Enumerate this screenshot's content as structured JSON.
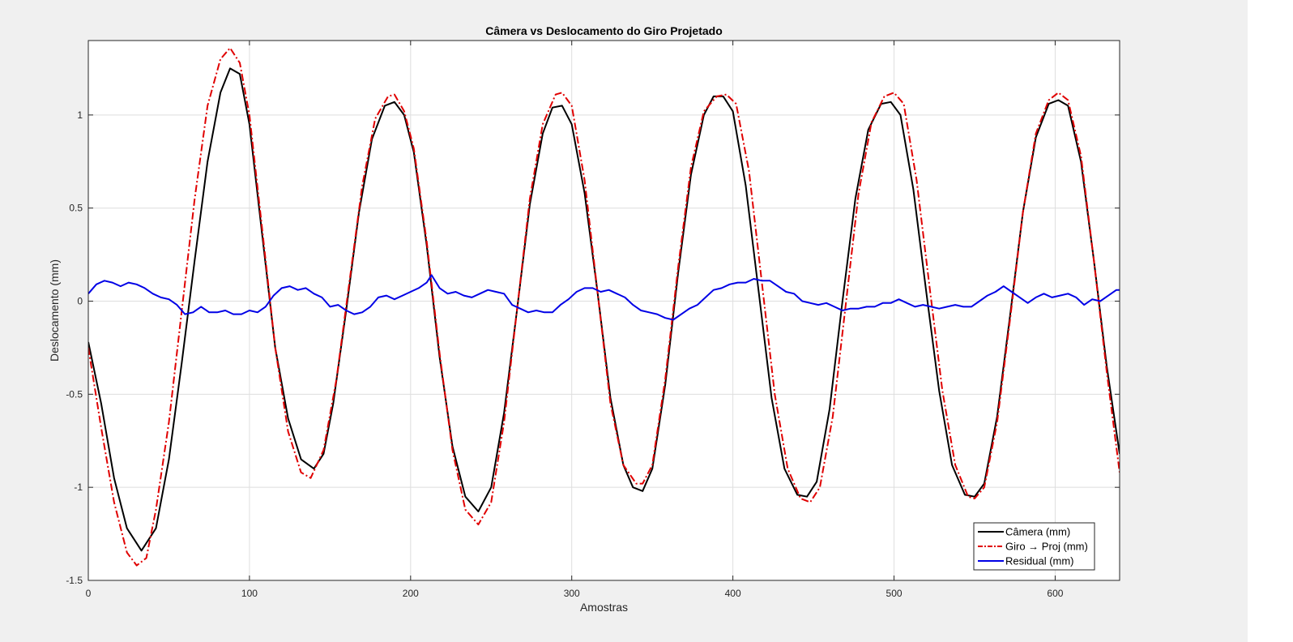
{
  "chart_data": {
    "type": "line",
    "title": "Câmera vs Deslocamento do Giro Projetado",
    "xlabel": "Amostras",
    "ylabel": "Deslocamento (mm)",
    "xlim": [
      0,
      640
    ],
    "ylim": [
      -1.5,
      1.4
    ],
    "xticks": [
      0,
      100,
      200,
      300,
      400,
      500,
      600
    ],
    "xtick_labels": [
      "0",
      "100",
      "200",
      "300",
      "400",
      "500",
      "600"
    ],
    "yticks": [
      -1.5,
      -1,
      -0.5,
      0,
      0.5,
      1
    ],
    "ytick_labels": [
      "-1.5",
      "-1",
      "-0.5",
      "0",
      "0.5",
      "1"
    ],
    "grid": true,
    "legend_position": "bottom-right",
    "series": [
      {
        "name": "Câmera (mm)",
        "color": "#000000",
        "line_style": "solid",
        "x": [
          0,
          8,
          16,
          24,
          33,
          42,
          50,
          58,
          66,
          74,
          82,
          88,
          94,
          100,
          108,
          116,
          124,
          132,
          140,
          146,
          152,
          160,
          168,
          176,
          184,
          190,
          196,
          202,
          210,
          218,
          226,
          234,
          242,
          250,
          258,
          266,
          274,
          282,
          288,
          294,
          300,
          308,
          316,
          324,
          332,
          338,
          344,
          350,
          358,
          366,
          374,
          382,
          388,
          394,
          400,
          408,
          416,
          424,
          432,
          440,
          446,
          452,
          460,
          468,
          476,
          484,
          492,
          498,
          504,
          512,
          520,
          528,
          536,
          544,
          550,
          556,
          564,
          572,
          580,
          588,
          596,
          602,
          608,
          616,
          624,
          632,
          640
        ],
        "y": [
          -0.22,
          -0.55,
          -0.95,
          -1.22,
          -1.34,
          -1.22,
          -0.85,
          -0.33,
          0.22,
          0.75,
          1.12,
          1.25,
          1.22,
          0.95,
          0.35,
          -0.25,
          -0.63,
          -0.85,
          -0.9,
          -0.82,
          -0.55,
          -0.05,
          0.48,
          0.87,
          1.05,
          1.07,
          1.0,
          0.8,
          0.3,
          -0.3,
          -0.78,
          -1.05,
          -1.13,
          -1.0,
          -0.6,
          -0.05,
          0.52,
          0.9,
          1.04,
          1.05,
          0.95,
          0.58,
          0.05,
          -0.52,
          -0.88,
          -1.0,
          -1.02,
          -0.9,
          -0.45,
          0.15,
          0.68,
          1.0,
          1.1,
          1.1,
          1.02,
          0.62,
          0.05,
          -0.52,
          -0.9,
          -1.04,
          -1.05,
          -0.97,
          -0.58,
          0.0,
          0.55,
          0.92,
          1.06,
          1.07,
          1.0,
          0.6,
          0.05,
          -0.48,
          -0.88,
          -1.04,
          -1.05,
          -0.98,
          -0.62,
          -0.08,
          0.48,
          0.88,
          1.06,
          1.08,
          1.05,
          0.75,
          0.22,
          -0.35,
          -0.82
        ]
      },
      {
        "name": "Giro → Proj (mm)",
        "color": "#e00000",
        "line_style": "dash-dot",
        "x": [
          0,
          8,
          16,
          24,
          30,
          36,
          42,
          50,
          58,
          66,
          74,
          82,
          88,
          94,
          100,
          108,
          116,
          124,
          132,
          138,
          146,
          154,
          162,
          170,
          178,
          186,
          190,
          196,
          202,
          210,
          218,
          226,
          234,
          242,
          250,
          258,
          266,
          274,
          282,
          290,
          294,
          300,
          308,
          316,
          324,
          332,
          340,
          344,
          350,
          358,
          366,
          374,
          382,
          390,
          396,
          402,
          410,
          418,
          426,
          434,
          442,
          448,
          454,
          462,
          470,
          478,
          486,
          494,
          500,
          506,
          514,
          522,
          530,
          538,
          546,
          550,
          556,
          564,
          572,
          580,
          588,
          596,
          602,
          608,
          616,
          624,
          632,
          640
        ],
        "y": [
          -0.25,
          -0.68,
          -1.08,
          -1.35,
          -1.42,
          -1.38,
          -1.12,
          -0.65,
          -0.05,
          0.55,
          1.05,
          1.3,
          1.36,
          1.28,
          1.0,
          0.38,
          -0.25,
          -0.7,
          -0.92,
          -0.95,
          -0.8,
          -0.42,
          0.1,
          0.62,
          0.98,
          1.1,
          1.11,
          1.02,
          0.82,
          0.32,
          -0.28,
          -0.8,
          -1.12,
          -1.2,
          -1.08,
          -0.65,
          -0.05,
          0.55,
          0.95,
          1.11,
          1.12,
          1.05,
          0.65,
          0.05,
          -0.55,
          -0.88,
          -0.98,
          -0.98,
          -0.88,
          -0.42,
          0.18,
          0.72,
          1.02,
          1.1,
          1.11,
          1.06,
          0.7,
          0.1,
          -0.5,
          -0.9,
          -1.06,
          -1.08,
          -1.0,
          -0.62,
          -0.02,
          0.58,
          0.96,
          1.1,
          1.12,
          1.06,
          0.65,
          0.08,
          -0.48,
          -0.88,
          -1.05,
          -1.06,
          -1.0,
          -0.65,
          -0.1,
          0.48,
          0.9,
          1.08,
          1.12,
          1.08,
          0.78,
          0.22,
          -0.38,
          -0.92
        ]
      },
      {
        "name": "Residual (mm)",
        "color": "#0000e6",
        "line_style": "solid",
        "x": [
          0,
          5,
          10,
          15,
          20,
          25,
          30,
          35,
          40,
          45,
          50,
          55,
          60,
          65,
          70,
          75,
          80,
          85,
          90,
          95,
          100,
          105,
          110,
          115,
          120,
          125,
          130,
          135,
          140,
          145,
          150,
          155,
          160,
          165,
          170,
          175,
          180,
          185,
          190,
          195,
          200,
          205,
          210,
          213,
          218,
          223,
          228,
          233,
          238,
          243,
          248,
          253,
          258,
          263,
          268,
          273,
          278,
          283,
          288,
          293,
          298,
          303,
          308,
          313,
          318,
          323,
          328,
          333,
          338,
          343,
          348,
          353,
          358,
          363,
          368,
          373,
          378,
          383,
          388,
          393,
          398,
          403,
          408,
          413,
          418,
          423,
          428,
          433,
          438,
          443,
          448,
          453,
          458,
          463,
          468,
          473,
          478,
          483,
          488,
          493,
          498,
          503,
          508,
          513,
          518,
          523,
          528,
          533,
          538,
          543,
          548,
          553,
          558,
          563,
          568,
          573,
          578,
          583,
          588,
          593,
          598,
          603,
          608,
          613,
          618,
          623,
          628,
          633,
          638,
          640
        ],
        "y": [
          0.04,
          0.09,
          0.11,
          0.1,
          0.08,
          0.1,
          0.09,
          0.07,
          0.04,
          0.02,
          0.01,
          -0.02,
          -0.07,
          -0.06,
          -0.03,
          -0.06,
          -0.06,
          -0.05,
          -0.07,
          -0.07,
          -0.05,
          -0.06,
          -0.03,
          0.03,
          0.07,
          0.08,
          0.06,
          0.07,
          0.04,
          0.02,
          -0.03,
          -0.02,
          -0.05,
          -0.07,
          -0.06,
          -0.03,
          0.02,
          0.03,
          0.01,
          0.03,
          0.05,
          0.07,
          0.1,
          0.14,
          0.07,
          0.04,
          0.05,
          0.03,
          0.02,
          0.04,
          0.06,
          0.05,
          0.04,
          -0.02,
          -0.04,
          -0.06,
          -0.05,
          -0.06,
          -0.06,
          -0.02,
          0.01,
          0.05,
          0.07,
          0.07,
          0.05,
          0.06,
          0.04,
          0.02,
          -0.02,
          -0.05,
          -0.06,
          -0.07,
          -0.09,
          -0.1,
          -0.07,
          -0.04,
          -0.02,
          0.02,
          0.06,
          0.07,
          0.09,
          0.1,
          0.1,
          0.12,
          0.11,
          0.11,
          0.08,
          0.05,
          0.04,
          0.0,
          -0.01,
          -0.02,
          -0.01,
          -0.03,
          -0.05,
          -0.04,
          -0.04,
          -0.03,
          -0.03,
          -0.01,
          -0.01,
          0.01,
          -0.01,
          -0.03,
          -0.02,
          -0.03,
          -0.04,
          -0.03,
          -0.02,
          -0.03,
          -0.03,
          0.0,
          0.03,
          0.05,
          0.08,
          0.05,
          0.02,
          -0.01,
          0.02,
          0.04,
          0.02,
          0.03,
          0.04,
          0.02,
          -0.02,
          0.01,
          0.0,
          0.03,
          0.06,
          0.06
        ]
      }
    ]
  }
}
